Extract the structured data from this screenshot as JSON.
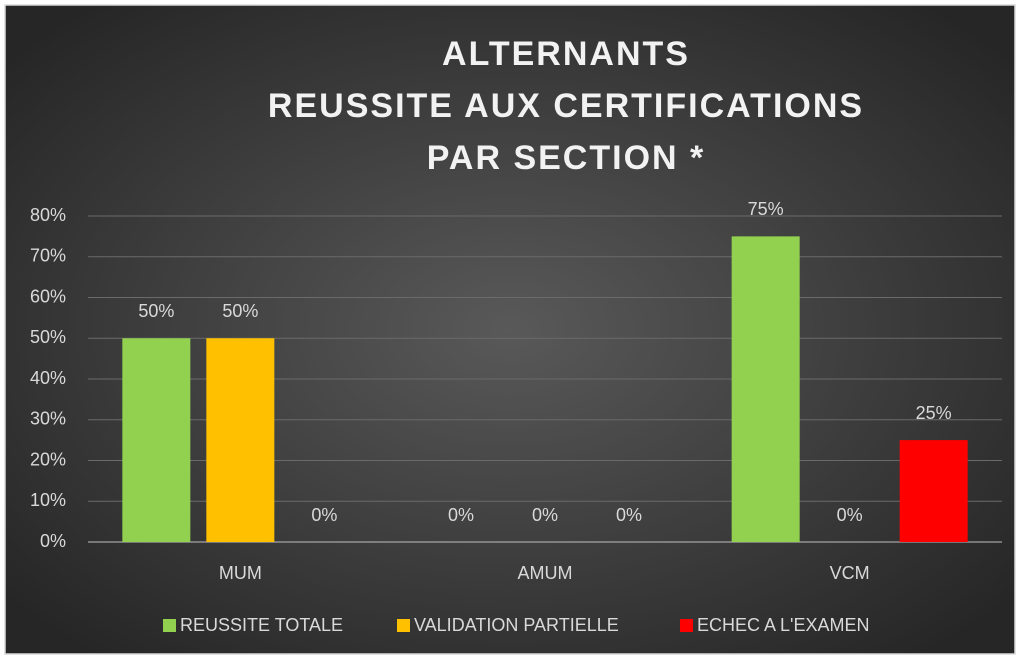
{
  "chart_data": {
    "type": "bar",
    "title": [
      "ALTERNANTS",
      "REUSSITE AUX CERTIFICATIONS",
      "PAR SECTION *"
    ],
    "categories": [
      "MUM",
      "AMUM",
      "VCM"
    ],
    "series": [
      {
        "name": "REUSSITE TOTALE",
        "color": "#92d050",
        "values": [
          50,
          0,
          75
        ],
        "value_labels": [
          "50%",
          "0%",
          "75%"
        ]
      },
      {
        "name": "VALIDATION PARTIELLE",
        "color": "#ffc000",
        "values": [
          50,
          0,
          0
        ],
        "value_labels": [
          "50%",
          "0%",
          "0%"
        ]
      },
      {
        "name": "ECHEC A L'EXAMEN",
        "color": "#ff0000",
        "values": [
          0,
          0,
          25
        ],
        "value_labels": [
          "0%",
          "0%",
          "25%"
        ]
      }
    ],
    "ylim": [
      0,
      80
    ],
    "yticks": [
      {
        "value": 0,
        "label": "0%"
      },
      {
        "value": 10,
        "label": "10%"
      },
      {
        "value": 20,
        "label": "20%"
      },
      {
        "value": 30,
        "label": "30%"
      },
      {
        "value": 40,
        "label": "40%"
      },
      {
        "value": 50,
        "label": "50%"
      },
      {
        "value": 60,
        "label": "60%"
      },
      {
        "value": 70,
        "label": "70%"
      },
      {
        "value": 80,
        "label": "80%"
      }
    ],
    "grid": true,
    "legend": "bottom"
  }
}
